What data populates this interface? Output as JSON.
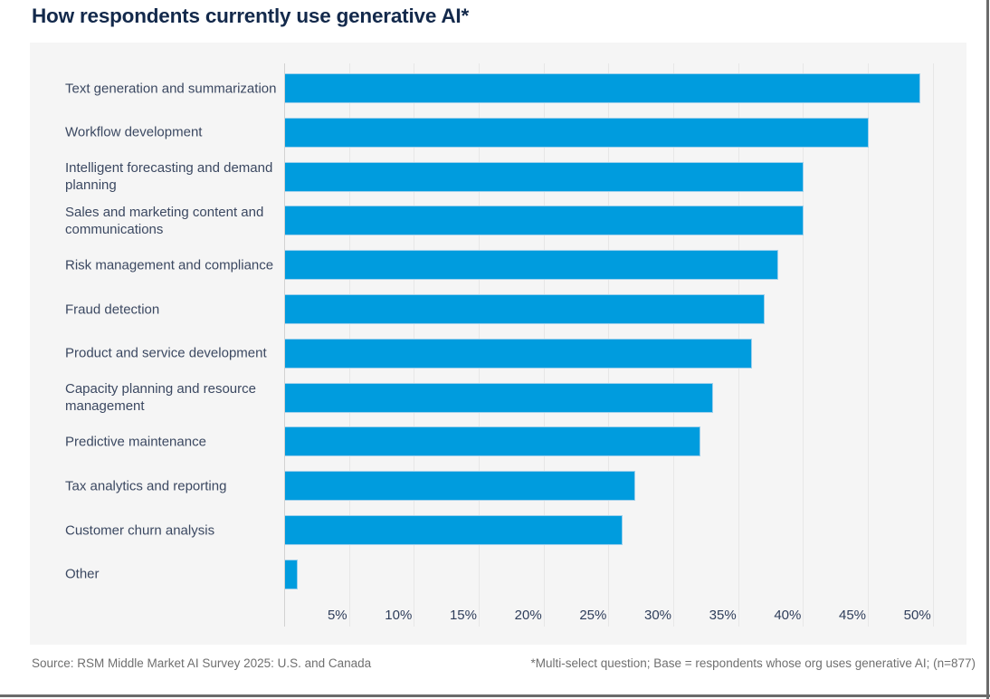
{
  "title": "How respondents currently use generative AI*",
  "chart_data": {
    "type": "bar",
    "orientation": "horizontal",
    "title": "How respondents currently use generative AI*",
    "categories": [
      "Text generation and summarization",
      "Workflow development",
      "Intelligent forecasting and demand planning",
      "Sales and marketing content and communications",
      "Risk management and compliance",
      "Fraud detection",
      "Product and service development",
      "Capacity planning and resource management",
      "Predictive maintenance",
      "Tax analytics and reporting",
      "Customer churn analysis",
      "Other"
    ],
    "values": [
      49,
      45,
      40,
      40,
      38,
      37,
      36,
      33,
      32,
      27,
      26,
      1
    ],
    "unit": "%",
    "xlim": [
      0,
      50
    ],
    "xtick_values": [
      5,
      10,
      15,
      20,
      25,
      30,
      35,
      40,
      45,
      50
    ],
    "xtick_labels": [
      "5%",
      "10%",
      "15%",
      "20%",
      "25%",
      "30%",
      "35%",
      "40%",
      "45%",
      "50%"
    ],
    "grid": true,
    "legend": "none",
    "bar_color": "#009cde"
  },
  "footer": {
    "source": "Source: RSM Middle Market AI Survey 2025: U.S. and Canada",
    "note": "*Multi-select question; Base = respondents whose org uses generative AI; (n=877)"
  },
  "colors": {
    "title_text": "#13294b",
    "label_text": "#3b4861",
    "tick_text": "#2e3d5a",
    "bar_fill": "#009cde",
    "bar_stroke": "#9ed0ec",
    "panel_background": "#f5f5f5",
    "gridline": "#e7e7e7",
    "footer_text": "#6f6f6f",
    "frame_line": "#6b6b6b"
  }
}
